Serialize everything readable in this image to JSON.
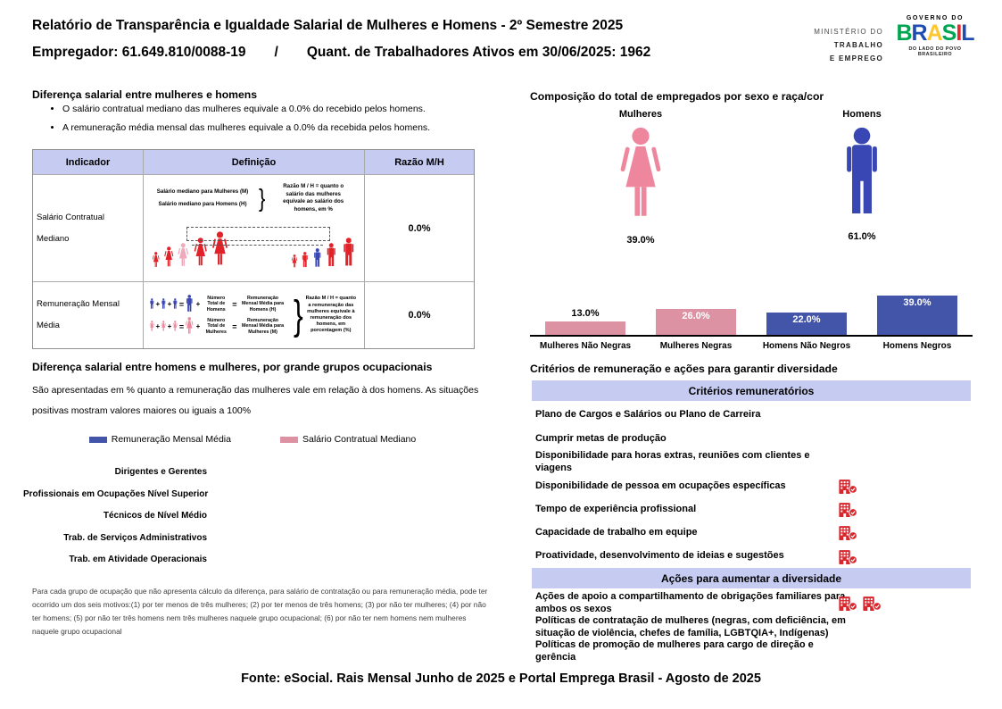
{
  "header": {
    "title": "Relatório de Transparência e Igualdade Salarial de Mulheres e Homens - 2º Semestre 2025",
    "employer": "Empregador: 61.649.810/0088-19",
    "separator": "/",
    "workers": "Quant. de Trabalhadores Ativos em 30/06/2025: 1962",
    "ministry_logo": {
      "line1": "MINISTÉRIO DO",
      "line2": "TRABALHO",
      "line3": "E EMPREGO"
    },
    "gov_logo": {
      "top": "GOVERNO DO",
      "brand": "BRASIL",
      "bottom": "DO LADO DO POVO BRASILEIRO"
    }
  },
  "wage_gap": {
    "title": "Diferença salarial entre mulheres e homens",
    "bullets": [
      "O salário contratual mediano das mulheres equivale a 0.0% do recebido pelos homens.",
      "A remuneração média mensal das mulheres equivale a 0.0% da recebida pelos homens."
    ],
    "table": {
      "col_indicator": "Indicador",
      "col_definition": "Definição",
      "col_ratio": "Razão M/H",
      "row1": {
        "indicator": "Salário Contratual Mediano",
        "label_women": "Salário mediano para Mulheres (M)",
        "label_men": "Salário mediano para Homens (H)",
        "brace": "}",
        "note": "Razão M / H = quanto o salário das mulheres equivale ao salário dos homens, em %",
        "ratio": "0.0%"
      },
      "row2": {
        "indicator": "Remuneração Mensal Média",
        "plus": "+",
        "equals": "=",
        "men_count_label": "Número Total de Homens",
        "men_result_label": "Remuneração Mensal Média para Homens (H)",
        "women_count_label": "Número Total de Mulheres",
        "women_result_label": "Remuneração Mensal Média para Mulheres (M)",
        "brace": "}",
        "note": "Razão M / H = quanto a remuneração das mulheres equivale à remuneração dos homens, em porcentagem (%)",
        "ratio": "0.0%"
      }
    }
  },
  "composition": {
    "title": "Composição do total de empregados por sexo e raça/cor",
    "women_label": "Mulheres",
    "women_value": "39.0%",
    "men_label": "Homens",
    "men_value": "61.0%"
  },
  "chart_data": {
    "type": "bar",
    "title": "Composição do total de empregados por sexo e raça/cor",
    "categories": [
      "Mulheres Não Negras",
      "Mulheres Negras",
      "Homens Não Negros",
      "Homens Negros"
    ],
    "values": [
      13.0,
      26.0,
      22.0,
      39.0
    ],
    "value_labels": [
      "13.0%",
      "26.0%",
      "22.0%",
      "39.0%"
    ],
    "bar_colors": [
      "#dd92a4",
      "#dd92a4",
      "#4355a8",
      "#4355a8"
    ],
    "label_inside": [
      false,
      true,
      true,
      true
    ],
    "gender_totals": {
      "Mulheres": 39.0,
      "Homens": 61.0
    },
    "ylim": [
      0,
      45
    ],
    "grid": false,
    "legend_position": "none"
  },
  "occupational": {
    "title": "Diferença salarial entre homens e mulheres, por grande grupos ocupacionais",
    "description": "São apresentadas em % quanto a remuneração das mulheres vale em relação à dos homens. As situações positivas mostram valores maiores ou iguais a 100%",
    "legend": [
      {
        "label": "Remuneração Mensal Média",
        "color": "#4355a8"
      },
      {
        "label": "Salário Contratual Mediano",
        "color": "#dd92a4"
      }
    ],
    "categories": [
      "Dirigentes e Gerentes",
      "Profissionais em Ocupações Nível Superior",
      "Técnicos de Nível Médio",
      "Trab. de Serviços Administrativos",
      "Trab. em Atividade Operacionais"
    ],
    "footnote": "Para cada grupo de ocupação que não apresenta cálculo da diferença, para salário de contratação ou para remuneração média, pode ter ocorrido um dos seis motivos:(1) por ter menos de três mulheres; (2) por ter menos de três homens; (3) por não ter mulheres; (4) por não ter homens; (5) por não ter três homens nem três mulheres naquele grupo ocupacional; (6) por não ter nem homens nem mulheres naquele grupo ocupacional"
  },
  "criteria": {
    "title": "Critérios de remuneração e ações para garantir diversidade",
    "band_criteria": "Critérios remuneratórios",
    "items": [
      {
        "label": "Plano de Cargos e Salários ou Plano de Carreira",
        "icons": 0
      },
      {
        "label": "Cumprir metas de produção",
        "icons": 0
      },
      {
        "label": "Disponibilidade para horas extras, reuniões com clientes e viagens",
        "icons": 0
      },
      {
        "label": "Disponibilidade de pessoa em ocupações específicas",
        "icons": 1
      },
      {
        "label": "Tempo de experiência profissional",
        "icons": 1
      },
      {
        "label": "Capacidade de trabalho em equipe",
        "icons": 1
      },
      {
        "label": "Proatividade, desenvolvimento de ideias e sugestões",
        "icons": 1
      }
    ],
    "band_actions": "Ações para aumentar a diversidade",
    "actions": [
      {
        "label": "Ações de apoio a compartilhamento de obrigações familiares para ambos os sexos",
        "icons": 2
      },
      {
        "label": "Políticas de contratação de mulheres (negras, com deficiência, em situação de violência, chefes de família, LGBTQIA+, Indígenas)",
        "icons": 0
      },
      {
        "label": "Políticas de promoção de mulheres para cargo de direção e gerência",
        "icons": 0
      }
    ]
  },
  "footer": {
    "source": "Fonte: eSocial. Rais Mensal Junho de 2025 e Portal Emprega Brasil - Agosto de 2025"
  },
  "colors": {
    "band_bg": "#c5cbf1",
    "bar_pink": "#dd92a4",
    "bar_blue": "#4355a8",
    "icon_pink": "#ee879d",
    "icon_blue": "#3847b4",
    "figure_red": "#e12228",
    "figure_lightpink": "#efa9bb",
    "icon_red": "#d8262c",
    "brasil_letters": [
      "#00a550",
      "#1f4cb2",
      "#fdc82f",
      "#00a550",
      "#e8272c",
      "#1f4cb2"
    ]
  }
}
